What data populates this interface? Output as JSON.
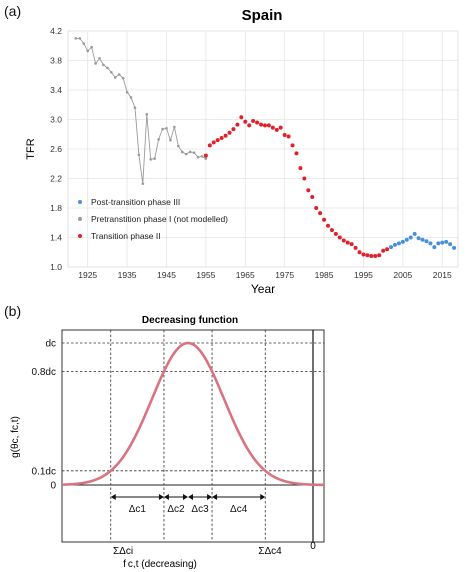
{
  "panels": {
    "a_label": "(a)",
    "b_label": "(b)"
  },
  "chart_data": [
    {
      "type": "scatter",
      "title": "Spain",
      "xlabel": "Year",
      "ylabel": "TFR",
      "xlim": [
        1920,
        2019
      ],
      "ylim": [
        1.0,
        4.2
      ],
      "xticks": [
        1925,
        1935,
        1945,
        1955,
        1965,
        1975,
        1985,
        1995,
        2005,
        2015
      ],
      "yticks": [
        1.0,
        1.4,
        1.8,
        2.2,
        2.6,
        3.0,
        3.4,
        3.8,
        4.2
      ],
      "grid": true,
      "legend": "bottom-left",
      "series": [
        {
          "name": "Post-transition phase III",
          "color": "#4a90d9",
          "connected": false,
          "x": [
            2002,
            2003,
            2004,
            2005,
            2006,
            2007,
            2008,
            2009,
            2010,
            2011,
            2012,
            2013,
            2014,
            2015,
            2016,
            2017,
            2018
          ],
          "y": [
            1.27,
            1.3,
            1.32,
            1.34,
            1.37,
            1.4,
            1.45,
            1.39,
            1.37,
            1.35,
            1.32,
            1.27,
            1.32,
            1.33,
            1.34,
            1.31,
            1.26
          ]
        },
        {
          "name": "Pretranstition phase I (not modelled)",
          "color": "#9a9a9a",
          "connected": true,
          "x": [
            1922,
            1923,
            1924,
            1925,
            1926,
            1927,
            1928,
            1929,
            1930,
            1931,
            1932,
            1933,
            1934,
            1935,
            1936,
            1937,
            1938,
            1939,
            1940,
            1941,
            1942,
            1943,
            1944,
            1945,
            1946,
            1947,
            1948,
            1949,
            1950,
            1951,
            1952,
            1953,
            1954,
            1955
          ],
          "y": [
            4.1,
            4.1,
            4.03,
            3.93,
            3.98,
            3.76,
            3.83,
            3.74,
            3.7,
            3.64,
            3.57,
            3.61,
            3.56,
            3.37,
            3.3,
            3.16,
            2.52,
            2.13,
            3.07,
            2.46,
            2.47,
            2.73,
            2.87,
            2.88,
            2.72,
            2.9,
            2.64,
            2.56,
            2.53,
            2.56,
            2.55,
            2.49,
            2.5,
            2.47
          ]
        },
        {
          "name": "Transition phase II",
          "color": "#e0202a",
          "connected": false,
          "x": [
            1955,
            1956,
            1957,
            1958,
            1959,
            1960,
            1961,
            1962,
            1963,
            1964,
            1965,
            1966,
            1967,
            1968,
            1969,
            1970,
            1971,
            1972,
            1973,
            1974,
            1975,
            1976,
            1977,
            1978,
            1979,
            1980,
            1981,
            1982,
            1983,
            1984,
            1985,
            1986,
            1987,
            1988,
            1989,
            1990,
            1991,
            1992,
            1993,
            1994,
            1995,
            1996,
            1997,
            1998,
            1999,
            2000,
            2001
          ],
          "y": [
            2.51,
            2.65,
            2.69,
            2.72,
            2.75,
            2.78,
            2.82,
            2.87,
            2.93,
            3.03,
            2.97,
            2.92,
            2.98,
            2.96,
            2.93,
            2.92,
            2.92,
            2.89,
            2.86,
            2.89,
            2.79,
            2.77,
            2.65,
            2.54,
            2.34,
            2.2,
            2.04,
            1.95,
            1.8,
            1.73,
            1.64,
            1.56,
            1.5,
            1.45,
            1.4,
            1.36,
            1.33,
            1.31,
            1.26,
            1.2,
            1.17,
            1.16,
            1.15,
            1.15,
            1.16,
            1.22,
            1.24
          ]
        }
      ]
    },
    {
      "type": "line",
      "title": "Decreasing function",
      "xlabel": "f c,t (decreasing)",
      "ylabel": "g(θc, fc,t)",
      "yticks": [
        "dc",
        "0.8dc",
        "0.1dc",
        "0"
      ],
      "curve": {
        "color": "#d9747f",
        "shape": "gaussian",
        "peak": "dc"
      },
      "intervals": [
        "Δc1",
        "Δc2",
        "Δc3",
        "Δc4"
      ],
      "bottom_labels": {
        "left": "ΣΔci",
        "right": "ΣΔc4",
        "zero": "0"
      }
    }
  ]
}
